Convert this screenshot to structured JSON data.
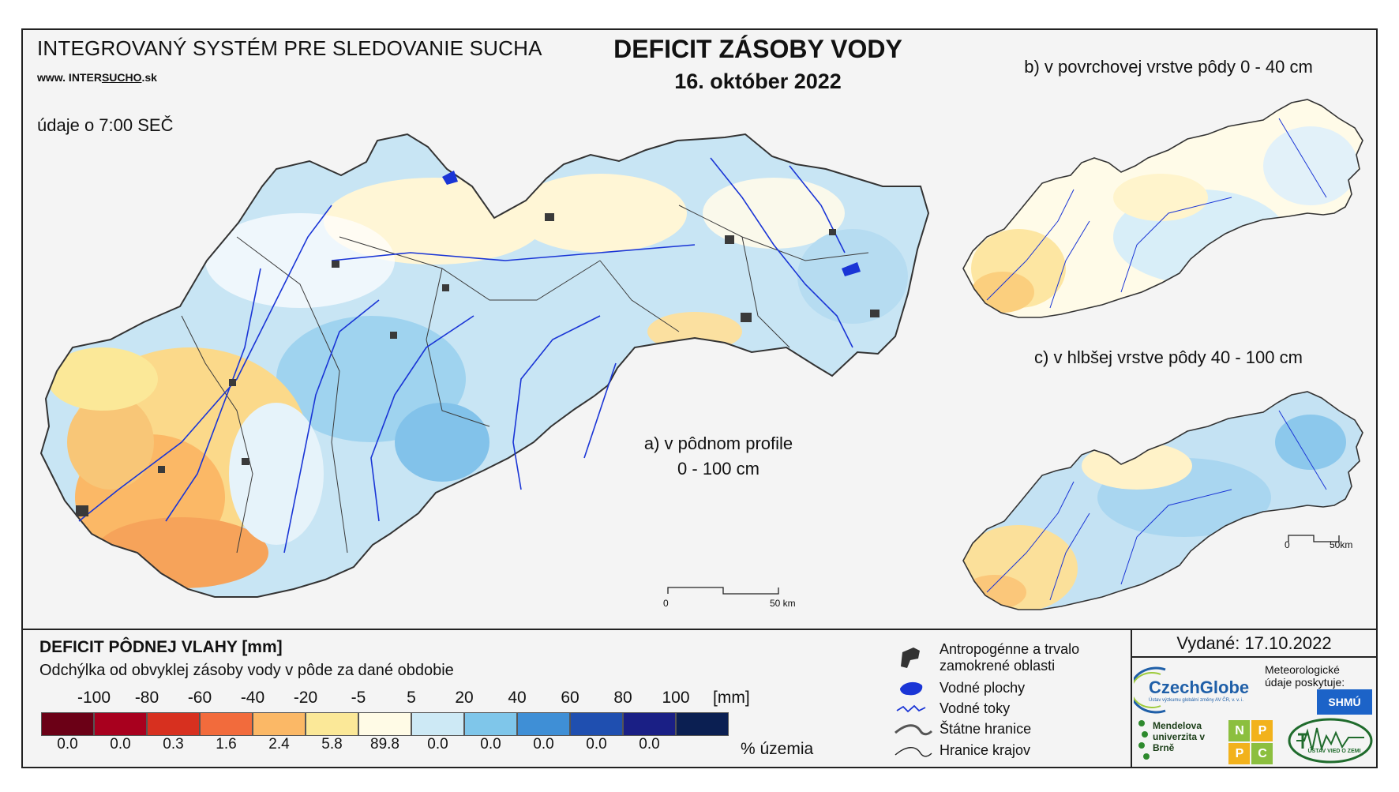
{
  "header": {
    "system_title": "INTEGROVANÝ SYSTÉM PRE SLEDOVANIE SUCHA",
    "site_prefix": "www. INTER",
    "site_underlined": "SUCHO",
    "site_suffix": ".sk",
    "main_title": "DEFICIT ZÁSOBY VODY",
    "date": "16. október 2022",
    "data_note": "údaje o 7:00 SEČ"
  },
  "maps": {
    "a_label_line1": "a) v pôdnom profile",
    "a_label_line2": "0 - 100 cm",
    "b_label": "b) v povrchovej vrstve pôdy 0 - 40 cm",
    "c_label": "c) v hlbšej vrstve pôdy 40 - 100 cm",
    "scale_main_start": "0",
    "scale_main_end": "50 km",
    "scale_small_start": "0",
    "scale_small_end": "50km"
  },
  "legend": {
    "title": "DEFICIT PÔDNEJ VLAHY [mm]",
    "subtitle": "Odchýlka od obvyklej zásoby vody v pôde za dané obdobie",
    "ticks": [
      "-100",
      "-80",
      "-60",
      "-40",
      "-20",
      "-5",
      "5",
      "20",
      "40",
      "60",
      "80",
      "100"
    ],
    "unit": "[mm]",
    "colors": [
      "#6b0016",
      "#a8001e",
      "#d7301f",
      "#f26b3c",
      "#fbb866",
      "#fbe898",
      "#fffbe6",
      "#cde9f5",
      "#7fc6ea",
      "#3f8fd6",
      "#1f4fb0",
      "#1a1f85",
      "#0b1f52"
    ],
    "percentages": [
      "0.0",
      "0.0",
      "0.3",
      "1.6",
      "2.4",
      "5.8",
      "89.8",
      "0.0",
      "0.0",
      "0.0",
      "0.0",
      "0.0"
    ],
    "percent_label": "% územia",
    "symbols": [
      {
        "icon": "urban-area-icon",
        "text": "Antropogénne a trvalo zamokrené oblasti"
      },
      {
        "icon": "water-body-icon",
        "text": "Vodné plochy"
      },
      {
        "icon": "river-icon",
        "text": "Vodné toky"
      },
      {
        "icon": "state-border-icon",
        "text": "Štátne hranice"
      },
      {
        "icon": "region-border-icon",
        "text": "Hranice krajov"
      }
    ]
  },
  "footer": {
    "issued": "Vydané: 17.10.2022",
    "czechglobe": "CzechGlobe",
    "czechglobe_sub": "Ústav výzkumu globální změny AV ČR, v. v. i.",
    "meteo_note": "Meteorologické údaje poskytuje:",
    "shmu": "SHMÚ",
    "mendel": "Mendelova univerzita v Brně",
    "nppc_letters": [
      "N",
      "P",
      "P",
      "C"
    ],
    "uvz": "ÚSTAV VIED O ZEMI"
  }
}
